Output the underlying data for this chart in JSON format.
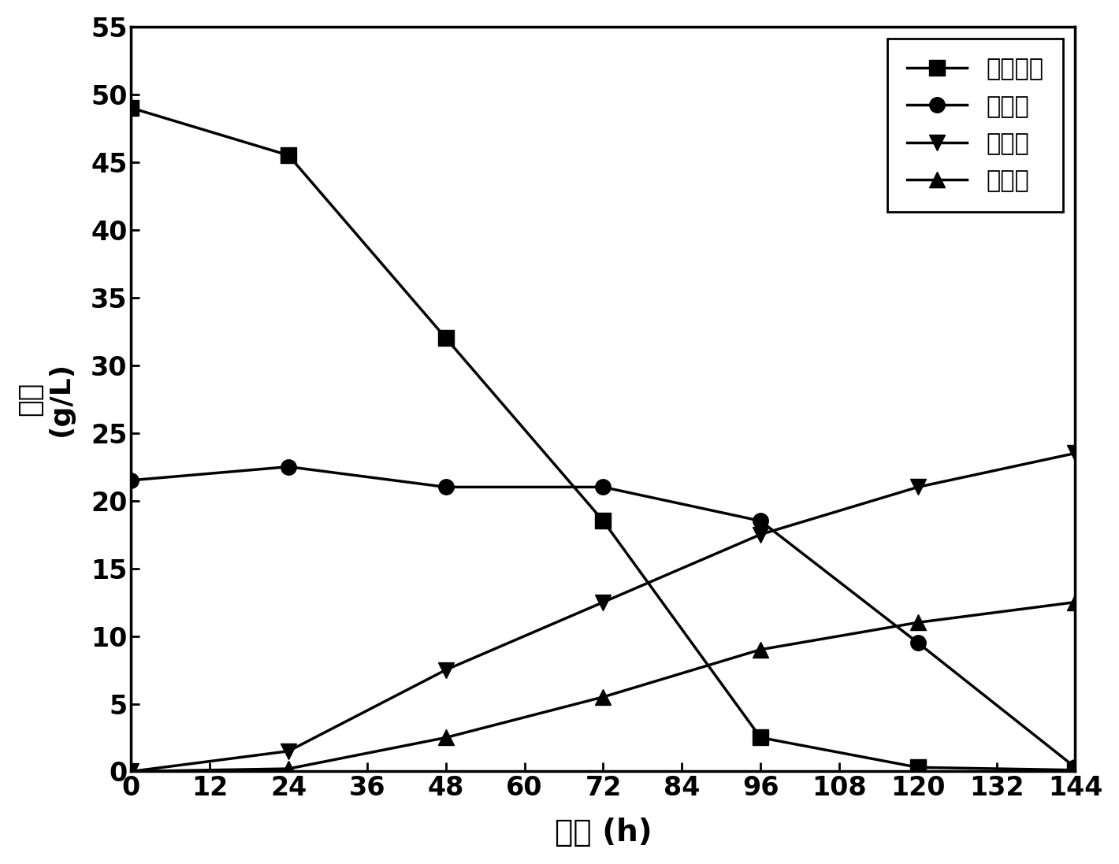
{
  "x": [
    0,
    24,
    48,
    72,
    96,
    120,
    144
  ],
  "series1_label": "葬糖浓度",
  "series1_marker": "s",
  "series1_y": [
    49.0,
    45.5,
    32.0,
    18.5,
    2.5,
    0.3,
    0.1
  ],
  "series2_label": "菌体量",
  "series2_marker": "o",
  "series2_y": [
    21.5,
    22.5,
    21.0,
    21.0,
    18.5,
    9.5,
    0.3
  ],
  "series3_label": "生物量",
  "series3_marker": "v",
  "series3_y": [
    0.0,
    1.5,
    7.5,
    12.5,
    17.5,
    21.0,
    23.5
  ],
  "series4_label": "油脂量",
  "series4_marker": "^",
  "series4_y": [
    0.0,
    0.2,
    2.5,
    5.5,
    9.0,
    11.0,
    12.5
  ],
  "xlabel": "时间 (h)",
  "ylabel_chinese": "浓度",
  "ylabel_unit": "(g/L)",
  "xlim": [
    0,
    144
  ],
  "ylim": [
    0,
    55
  ],
  "xticks": [
    0,
    12,
    24,
    36,
    48,
    60,
    72,
    84,
    96,
    108,
    120,
    132,
    144
  ],
  "yticks": [
    0,
    5,
    10,
    15,
    20,
    25,
    30,
    35,
    40,
    45,
    50,
    55
  ],
  "line_color": "#000000",
  "marker_size": 14,
  "line_width": 2.5,
  "background_color": "#ffffff"
}
